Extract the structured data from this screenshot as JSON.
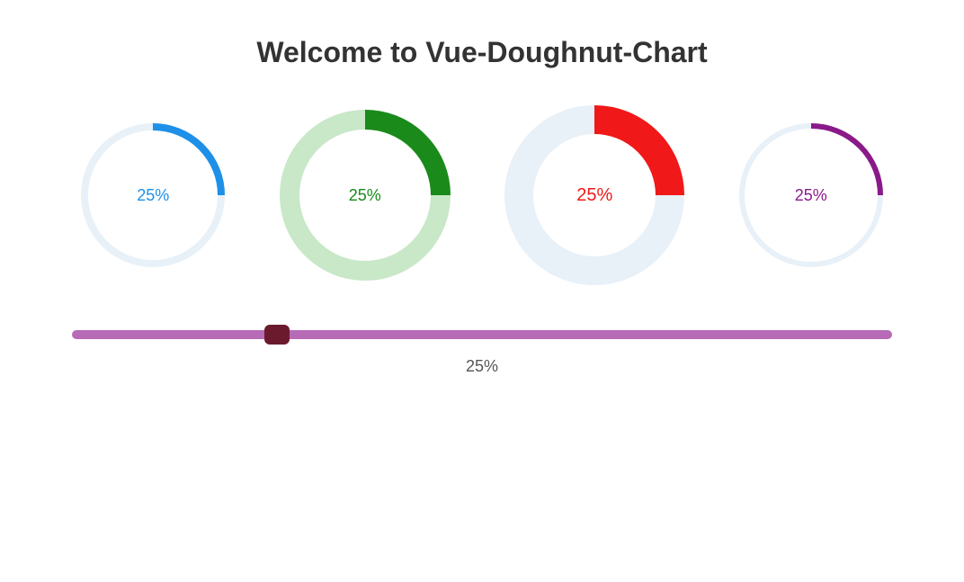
{
  "title": "Welcome to Vue-Doughnut-Chart",
  "charts": [
    {
      "percent": 25,
      "label": "25%",
      "size": 160,
      "stroke_width": 8,
      "fg_color": "#1e90e8",
      "bg_color": "#e8f1f8",
      "label_color": "#1e90e8",
      "label_fontsize": 18
    },
    {
      "percent": 25,
      "label": "25%",
      "size": 190,
      "stroke_width": 22,
      "fg_color": "#1a8a1a",
      "bg_color": "#c8e8c8",
      "label_color": "#1a8a1a",
      "label_fontsize": 18
    },
    {
      "percent": 25,
      "label": "25%",
      "size": 200,
      "stroke_width": 32,
      "fg_color": "#f01818",
      "bg_color": "#e8f0f8",
      "label_color": "#f01818",
      "label_fontsize": 20
    },
    {
      "percent": 25,
      "label": "25%",
      "size": 160,
      "stroke_width": 6,
      "fg_color": "#8a1a8a",
      "bg_color": "#e8f0f8",
      "label_color": "#8a1a8a",
      "label_fontsize": 18
    }
  ],
  "slider": {
    "value": 25,
    "label": "25%",
    "min": 0,
    "max": 100,
    "track_color": "#b76bb7",
    "thumb_color": "#6b1a2e",
    "track_height": 10,
    "thumb_width": 28,
    "thumb_height": 22,
    "label_color": "#555555",
    "label_fontsize": 18
  }
}
